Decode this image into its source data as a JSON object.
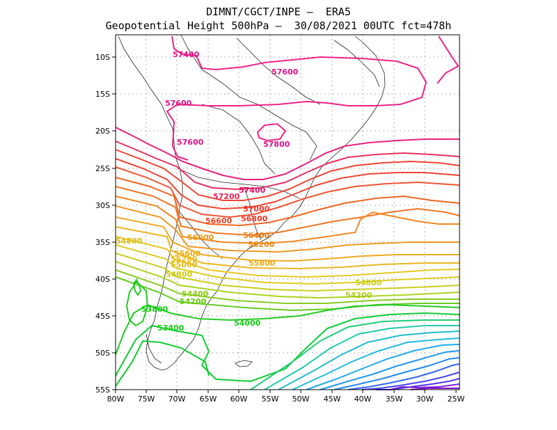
{
  "title": {
    "line1": "DIMNT/CGCT/INPE –  ERA5",
    "line2": "Geopotential Height 500hPa –  30/08/2021 00UTC fct=478h"
  },
  "axes": {
    "lat_labels": [
      "10S",
      "15S",
      "20S",
      "25S",
      "30S",
      "35S",
      "40S",
      "45S",
      "50S",
      "55S"
    ],
    "lon_labels": [
      "80W",
      "75W",
      "70W",
      "65W",
      "60W",
      "55W",
      "50W",
      "45W",
      "40W",
      "35W",
      "30W",
      "25W"
    ]
  },
  "colors": {
    "c57800": "#ee2288",
    "c57600": "#ee2288",
    "c57400": "#e8207c",
    "c57200": "#e83060",
    "c57000": "#ee4433",
    "c56800": "#ee4433",
    "c56600": "#ee5533",
    "c56400": "#ee7722",
    "c56200": "#ee8822",
    "c56000": "#ee9922",
    "c55800": "#eeaa22",
    "c55600": "#e8b622",
    "c55200": "#e6c822",
    "c55000": "#ddcc22",
    "c54800": "#cccc22",
    "c54600": "#aad422",
    "c54400": "#88cc22",
    "c54200": "#66cc22",
    "c54000": "#22cc22",
    "c53800": "#11cc22",
    "c53400": "#11cc33",
    "teal": "#22ccaa",
    "cyan": "#22bbdd",
    "blue": "#2288ee",
    "indigo": "#5533ee",
    "violet": "#8811cc"
  },
  "contour_labels": [
    {
      "text": "57400",
      "color": "#dd1188"
    },
    {
      "text": "57600",
      "color": "#dd1188"
    },
    {
      "text": "57600",
      "color": "#dd1188"
    },
    {
      "text": "57600",
      "color": "#dd1188"
    },
    {
      "text": "57800",
      "color": "#dd1188"
    },
    {
      "text": "57400",
      "color": "#dd1166"
    },
    {
      "text": "57200",
      "color": "#dd2255"
    },
    {
      "text": "57000",
      "color": "#ee3322"
    },
    {
      "text": "56800",
      "color": "#ee3322"
    },
    {
      "text": "56600",
      "color": "#ee4422"
    },
    {
      "text": "56400",
      "color": "#ee7711"
    },
    {
      "text": "56200",
      "color": "#ee8811"
    },
    {
      "text": "56000",
      "color": "#ee9911"
    },
    {
      "text": "55800",
      "color": "#eeaa11"
    },
    {
      "text": "55600",
      "color": "#eeaa11"
    },
    {
      "text": "55200",
      "color": "#eebb11"
    },
    {
      "text": "55000",
      "color": "#ddbb11"
    },
    {
      "text": "54800",
      "color": "#ddbb11"
    },
    {
      "text": "54800",
      "color": "#cccc11"
    },
    {
      "text": "54800",
      "color": "#cccc11"
    },
    {
      "text": "54400",
      "color": "#88cc11"
    },
    {
      "text": "54200",
      "color": "#66cc11"
    },
    {
      "text": "54200",
      "color": "#aacc11"
    },
    {
      "text": "54000",
      "color": "#11cc11"
    },
    {
      "text": "53800",
      "color": "#11cc11"
    },
    {
      "text": "53400",
      "color": "#11cc11"
    }
  ]
}
